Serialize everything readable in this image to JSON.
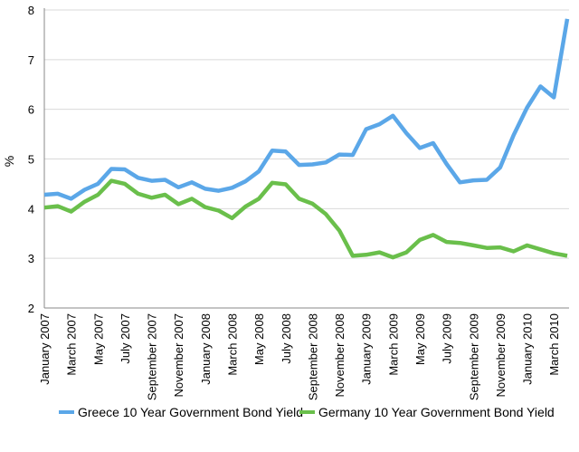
{
  "chart_data": {
    "type": "line",
    "title": "",
    "xlabel": "",
    "ylabel": "%",
    "ylim": [
      2,
      8
    ],
    "yticks": [
      "2",
      "3",
      "4",
      "5",
      "6",
      "7",
      "8"
    ],
    "grid": "horizontal",
    "legend_position": "bottom",
    "categories": [
      "Jan 2007",
      "Feb 2007",
      "Mar 2007",
      "Apr 2007",
      "May 2007",
      "Jun 2007",
      "Jul 2007",
      "Aug 2007",
      "Sep 2007",
      "Oct 2007",
      "Nov 2007",
      "Dec 2007",
      "Jan 2008",
      "Feb 2008",
      "Mar 2008",
      "Apr 2008",
      "May 2008",
      "Jun 2008",
      "Jul 2008",
      "Aug 2008",
      "Sep 2008",
      "Oct 2008",
      "Nov 2008",
      "Dec 2008",
      "Jan 2009",
      "Feb 2009",
      "Mar 2009",
      "Apr 2009",
      "May 2009",
      "Jun 2009",
      "Jul 2009",
      "Aug 2009",
      "Sep 2009",
      "Oct 2009",
      "Nov 2009",
      "Dec 2009",
      "Jan 2010",
      "Feb 2010",
      "Mar 2010",
      "Apr 2010"
    ],
    "tick_labels": [
      {
        "index": 0,
        "label": "January 2007"
      },
      {
        "index": 2,
        "label": "March 2007"
      },
      {
        "index": 4,
        "label": "May 2007"
      },
      {
        "index": 6,
        "label": "July 2007"
      },
      {
        "index": 8,
        "label": "September 2007"
      },
      {
        "index": 10,
        "label": "November 2007"
      },
      {
        "index": 12,
        "label": "January 2008"
      },
      {
        "index": 14,
        "label": "March 2008"
      },
      {
        "index": 16,
        "label": "May 2008"
      },
      {
        "index": 18,
        "label": "July 2008"
      },
      {
        "index": 20,
        "label": "September 2008"
      },
      {
        "index": 22,
        "label": "November 2008"
      },
      {
        "index": 24,
        "label": "January 2009"
      },
      {
        "index": 26,
        "label": "March 2009"
      },
      {
        "index": 28,
        "label": "May 2009"
      },
      {
        "index": 30,
        "label": "July 2009"
      },
      {
        "index": 32,
        "label": "September 2009"
      },
      {
        "index": 34,
        "label": "November 2009"
      },
      {
        "index": 36,
        "label": "January 2010"
      },
      {
        "index": 38,
        "label": "March 2010"
      }
    ],
    "series": [
      {
        "name": "Greece 10 Year Government Bond Yield",
        "color": "#5BA7E8",
        "values": [
          4.28,
          4.3,
          4.2,
          4.38,
          4.5,
          4.8,
          4.79,
          4.62,
          4.56,
          4.58,
          4.43,
          4.53,
          4.4,
          4.36,
          4.42,
          4.55,
          4.75,
          5.17,
          5.15,
          4.88,
          4.89,
          4.93,
          5.09,
          5.08,
          5.6,
          5.7,
          5.87,
          5.52,
          5.22,
          5.32,
          4.9,
          4.53,
          4.57,
          4.58,
          4.83,
          5.48,
          6.03,
          6.46,
          6.24,
          7.82
        ]
      },
      {
        "name": "Germany 10 Year Government Bond Yield",
        "color": "#6ABF4B",
        "values": [
          4.02,
          4.05,
          3.94,
          4.14,
          4.28,
          4.56,
          4.5,
          4.3,
          4.22,
          4.28,
          4.09,
          4.2,
          4.03,
          3.96,
          3.81,
          4.04,
          4.2,
          4.52,
          4.49,
          4.2,
          4.1,
          3.89,
          3.56,
          3.05,
          3.07,
          3.12,
          3.02,
          3.12,
          3.37,
          3.47,
          3.33,
          3.31,
          3.26,
          3.21,
          3.22,
          3.14,
          3.26,
          3.18,
          3.1,
          3.05
        ]
      }
    ]
  }
}
